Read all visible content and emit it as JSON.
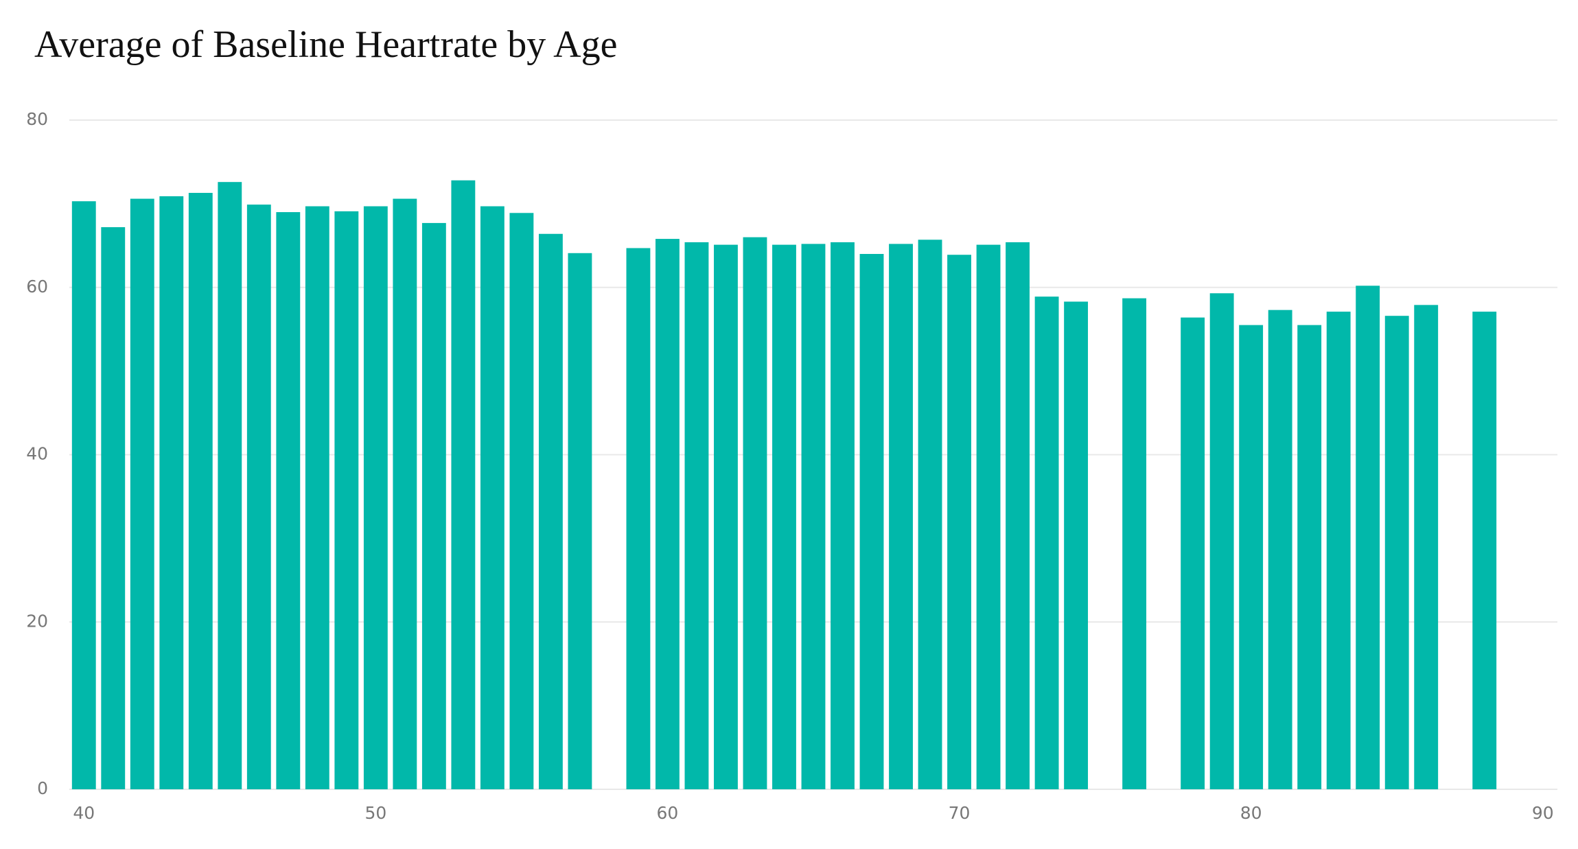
{
  "chart_data": {
    "type": "bar",
    "title": "Average of Baseline Heartrate by Age",
    "x": [
      40,
      41,
      42,
      43,
      44,
      45,
      46,
      47,
      48,
      49,
      50,
      51,
      52,
      53,
      54,
      55,
      56,
      57,
      59,
      60,
      61,
      62,
      63,
      64,
      65,
      66,
      67,
      68,
      69,
      70,
      71,
      72,
      73,
      74,
      76,
      78,
      79,
      80,
      81,
      82,
      83,
      84,
      85,
      86,
      88
    ],
    "values": [
      70.3,
      67.2,
      70.6,
      70.9,
      71.3,
      72.6,
      69.9,
      69.0,
      69.7,
      69.1,
      69.7,
      70.6,
      67.7,
      72.8,
      69.7,
      68.9,
      66.4,
      64.1,
      64.7,
      65.8,
      65.4,
      65.1,
      66.0,
      65.1,
      65.2,
      65.4,
      64.0,
      65.2,
      65.7,
      63.9,
      65.1,
      65.4,
      58.9,
      58.3,
      58.7,
      56.4,
      59.3,
      55.5,
      57.3,
      55.5,
      57.1,
      60.2,
      56.6,
      57.9,
      57.1
    ],
    "color": "#01b8aa",
    "xlim": [
      39.5,
      90.5
    ],
    "xticks": [
      40,
      50,
      60,
      70,
      80,
      90
    ],
    "ylim": [
      0,
      80
    ],
    "yticks": [
      0,
      20,
      40,
      60,
      80
    ],
    "grid": true
  }
}
